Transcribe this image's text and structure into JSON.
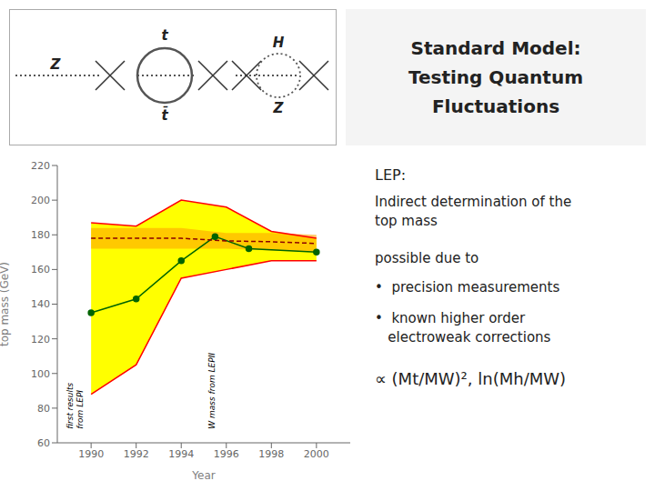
{
  "chart_data": {
    "type": "line",
    "title": "Standard Model:\nTesting Quantum Fluctuations",
    "xlabel": "Year",
    "ylabel": "top mass (GeV)",
    "xlim": [
      1988.5,
      2001.5
    ],
    "xticks": [
      1990,
      1992,
      1994,
      1996,
      1998,
      2000
    ],
    "ylim": [
      60,
      220
    ],
    "yticks": [
      60,
      80,
      100,
      120,
      140,
      160,
      180,
      200,
      220
    ],
    "grid": false,
    "series": [
      {
        "type": "band",
        "color": "yellow",
        "x": [
          1990,
          1992,
          1994,
          1996,
          1998,
          2000
        ],
        "lower": [
          88,
          105,
          155,
          160,
          165,
          165
        ],
        "upper": [
          187,
          185,
          200,
          196,
          182,
          178
        ]
      },
      {
        "type": "line",
        "color": "red",
        "x": [
          1990,
          1992,
          1994,
          1996,
          1998,
          2000
        ],
        "values": [
          187,
          185,
          200,
          196,
          182,
          178
        ]
      },
      {
        "type": "line",
        "color": "red",
        "x": [
          1990,
          1992,
          1994,
          1996,
          1998,
          2000
        ],
        "values": [
          88,
          105,
          155,
          160,
          165,
          165
        ]
      },
      {
        "type": "line",
        "color": "darkgreen",
        "marker": "o",
        "x": [
          1990,
          1992,
          1994,
          1995.5,
          1997,
          2000
        ],
        "values": [
          135,
          143,
          165,
          179,
          172,
          170
        ]
      },
      {
        "type": "band",
        "color": "orange",
        "x": [
          1990,
          1992,
          1994,
          1996,
          1998,
          2000
        ],
        "lower": [
          172,
          172,
          172,
          172,
          171,
          170
        ],
        "upper": [
          184,
          184,
          184,
          181,
          181,
          180
        ]
      },
      {
        "type": "line",
        "color": "darkred",
        "line_style": "dashed",
        "x": [
          1990,
          1992,
          1994,
          1996,
          1998,
          2000
        ],
        "values": [
          178,
          178,
          178,
          176.5,
          176,
          175
        ]
      }
    ],
    "annotations": [
      {
        "text": "first results\nfrom LEPI",
        "x": 1989.2,
        "y": 68
      },
      {
        "text": "W mass from LEPII",
        "x": 1995.5,
        "y": 68
      },
      "LEP:",
      "Indirect determination of the\ntop mass",
      "possible due to",
      "•  precision measurements",
      "•  known higher order\n   electroweak corrections",
      "∝ (Mt/MW)², ln(Mh/MW)",
      "Z",
      "t",
      "t̄",
      "H",
      "Z"
    ]
  }
}
